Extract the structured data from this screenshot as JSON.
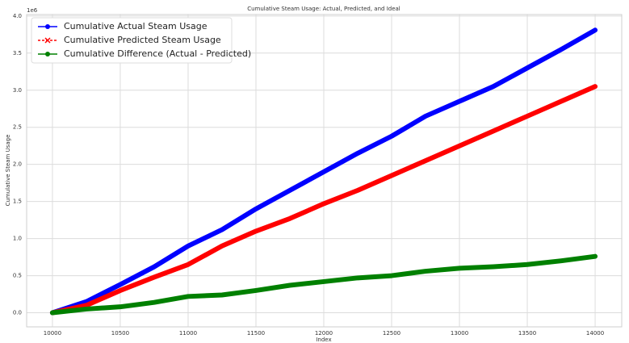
{
  "chart_data": {
    "type": "line",
    "title": "Cumulative Steam Usage: Actual, Predicted, and Ideal",
    "x_label": "Index",
    "y_label": "Cumulative Steam Usage",
    "y_offset_label": "1e6",
    "x": [
      10000,
      10250,
      10500,
      10750,
      11000,
      11250,
      11500,
      11750,
      12000,
      12250,
      12500,
      12750,
      13000,
      13250,
      13500,
      13750,
      14000
    ],
    "series": [
      {
        "name": "Cumulative Actual Steam Usage",
        "color": "#0000ff",
        "marker": "o",
        "values": [
          0,
          0.15,
          0.38,
          0.62,
          0.9,
          1.12,
          1.4,
          1.65,
          1.9,
          2.15,
          2.38,
          2.65,
          2.85,
          3.05,
          3.3,
          3.55,
          3.81
        ]
      },
      {
        "name": "Cumulative Predicted Steam Usage",
        "color": "#ff0000",
        "marker": "x",
        "values": [
          0,
          0.1,
          0.3,
          0.48,
          0.65,
          0.9,
          1.1,
          1.27,
          1.47,
          1.65,
          1.85,
          2.05,
          2.25,
          2.45,
          2.65,
          2.85,
          3.05
        ]
      },
      {
        "name": "Cumulative Difference (Actual - Predicted)",
        "color": "#008000",
        "marker": "o",
        "values": [
          0,
          0.05,
          0.08,
          0.14,
          0.22,
          0.24,
          0.3,
          0.37,
          0.42,
          0.47,
          0.5,
          0.56,
          0.6,
          0.62,
          0.65,
          0.7,
          0.76
        ]
      }
    ],
    "xlim": [
      9810,
      14196
    ],
    "ylim": [
      -0.19,
      4.02
    ],
    "xticks": [
      10000,
      10500,
      11000,
      11500,
      12000,
      12500,
      13000,
      13500,
      14000
    ],
    "yticks": [
      {
        "value": 0,
        "label": "0.0"
      },
      {
        "value": 0.5,
        "label": "0.5"
      },
      {
        "value": 1,
        "label": "1.0"
      },
      {
        "value": 1.5,
        "label": "1.5"
      },
      {
        "value": 2,
        "label": "2.0"
      },
      {
        "value": 2.5,
        "label": "2.5"
      },
      {
        "value": 3,
        "label": "3.0"
      },
      {
        "value": 3.5,
        "label": "3.5"
      },
      {
        "value": 4,
        "label": "4.0"
      }
    ],
    "grid": true,
    "legend": "upper left"
  }
}
